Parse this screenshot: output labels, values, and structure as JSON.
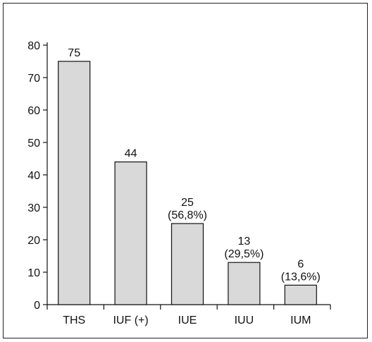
{
  "chart_data": {
    "type": "bar",
    "categories": [
      "THS",
      "IUF (+)",
      "IUE",
      "IUU",
      "IUM"
    ],
    "values": [
      75,
      44,
      25,
      13,
      6
    ],
    "data_labels": [
      [
        "75"
      ],
      [
        "44"
      ],
      [
        "25",
        "(56,8%)"
      ],
      [
        "13",
        "(29,5%)"
      ],
      [
        "6",
        "(13,6%)"
      ]
    ],
    "ylim": [
      0,
      80
    ],
    "yticks": [
      0,
      10,
      20,
      30,
      40,
      50,
      60,
      70,
      80
    ],
    "bar_fill": "#d9d9d9",
    "bar_stroke": "#111111",
    "grid": false,
    "legend": "none"
  }
}
